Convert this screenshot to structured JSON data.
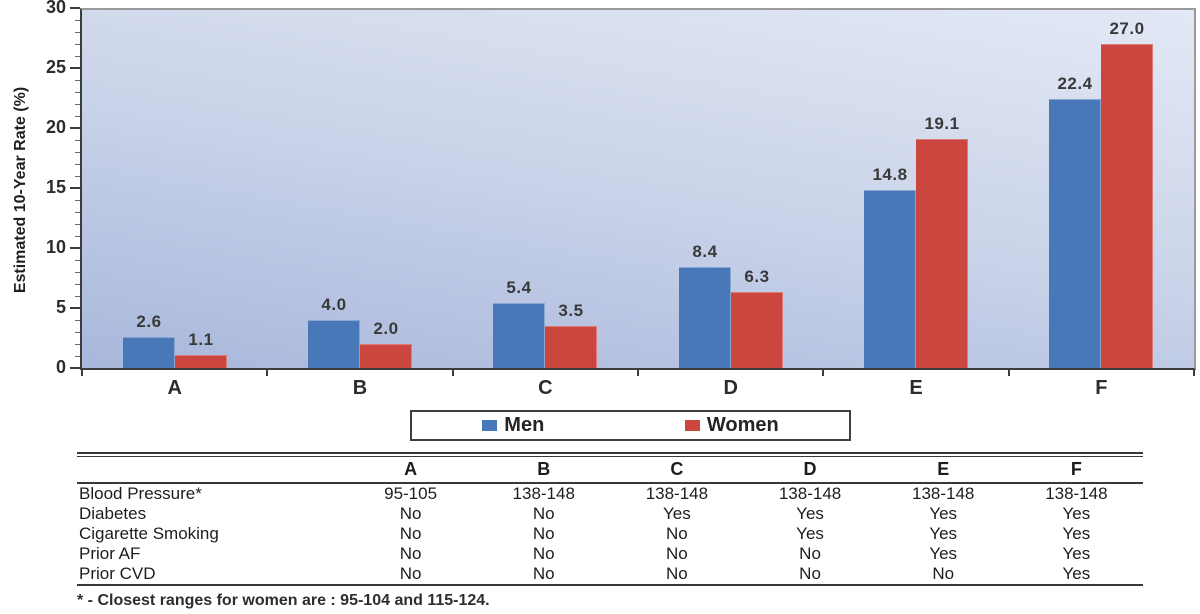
{
  "chart_data": {
    "type": "bar",
    "title": "",
    "xlabel": "",
    "ylabel": "Estimated 10-Year Rate (%)",
    "categories": [
      "A",
      "B",
      "C",
      "D",
      "E",
      "F"
    ],
    "series": [
      {
        "name": "Men",
        "color": "#4878b8",
        "values": [
          2.6,
          4.0,
          5.4,
          8.4,
          14.8,
          22.4
        ]
      },
      {
        "name": "Women",
        "color": "#cb463f",
        "values": [
          1.1,
          2.0,
          3.5,
          6.3,
          19.1,
          27.0
        ]
      }
    ],
    "ylim": [
      0,
      30
    ],
    "y_major_tick_step": 5,
    "y_minor_tick_step": 1,
    "value_label_decimals": 1,
    "grid": "off",
    "legend_position": "below-center",
    "plot_background": [
      "#e2e8f5",
      "#a8b7dc"
    ]
  },
  "table": {
    "columns": [
      "A",
      "B",
      "C",
      "D",
      "E",
      "F"
    ],
    "rows": [
      {
        "label": "Blood Pressure*",
        "values": [
          "95-105",
          "138-148",
          "138-148",
          "138-148",
          "138-148",
          "138-148"
        ]
      },
      {
        "label": "Diabetes",
        "values": [
          "No",
          "No",
          "Yes",
          "Yes",
          "Yes",
          "Yes"
        ]
      },
      {
        "label": "Cigarette Smoking",
        "values": [
          "No",
          "No",
          "No",
          "Yes",
          "Yes",
          "Yes"
        ]
      },
      {
        "label": "Prior AF",
        "values": [
          "No",
          "No",
          "No",
          "No",
          "Yes",
          "Yes"
        ]
      },
      {
        "label": "Prior CVD",
        "values": [
          "No",
          "No",
          "No",
          "No",
          "No",
          "Yes"
        ]
      }
    ]
  },
  "footnote": "* - Closest ranges for women are : 95-104 and 115-124."
}
